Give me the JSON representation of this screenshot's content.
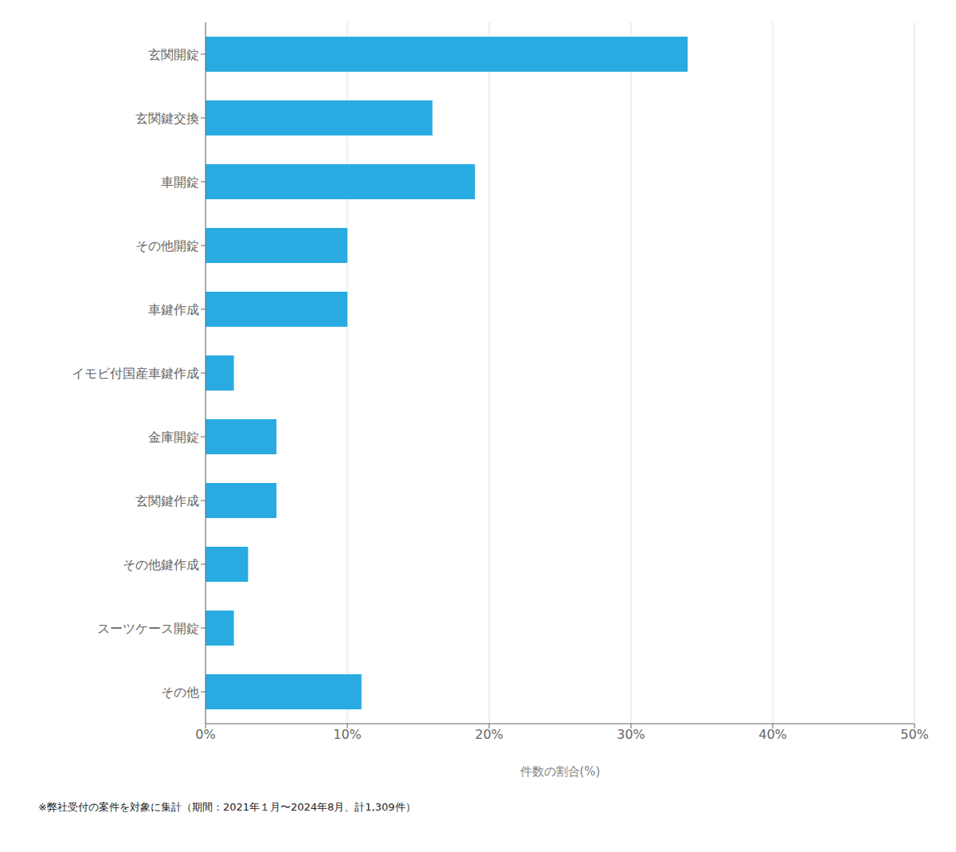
{
  "chart_data": {
    "type": "bar",
    "orientation": "horizontal",
    "categories": [
      "玄関開錠",
      "玄関鍵交換",
      "車開錠",
      "その他開錠",
      "車鍵作成",
      "イモビ付国産車鍵作成",
      "金庫開錠",
      "玄関鍵作成",
      "その他鍵作成",
      "スーツケース開錠",
      "その他"
    ],
    "values": [
      34.0,
      16.0,
      19.0,
      10.0,
      10.0,
      2.0,
      5.0,
      5.0,
      3.0,
      2.0,
      11.0
    ],
    "color": "#29ABE2",
    "xlim": [
      0,
      50
    ],
    "xticks": [
      {
        "value": 0,
        "label": "0%"
      },
      {
        "value": 10,
        "label": "10%"
      },
      {
        "value": 20,
        "label": "20%"
      },
      {
        "value": 30,
        "label": "30%"
      },
      {
        "value": 40,
        "label": "40%"
      },
      {
        "value": 50,
        "label": "50%"
      }
    ],
    "xlabel": "件数の割合(%)",
    "footnote": "※弊社受付の案件を対象に集計（期間：2021年１月〜2024年8月、計1,309件）",
    "grid": true
  }
}
